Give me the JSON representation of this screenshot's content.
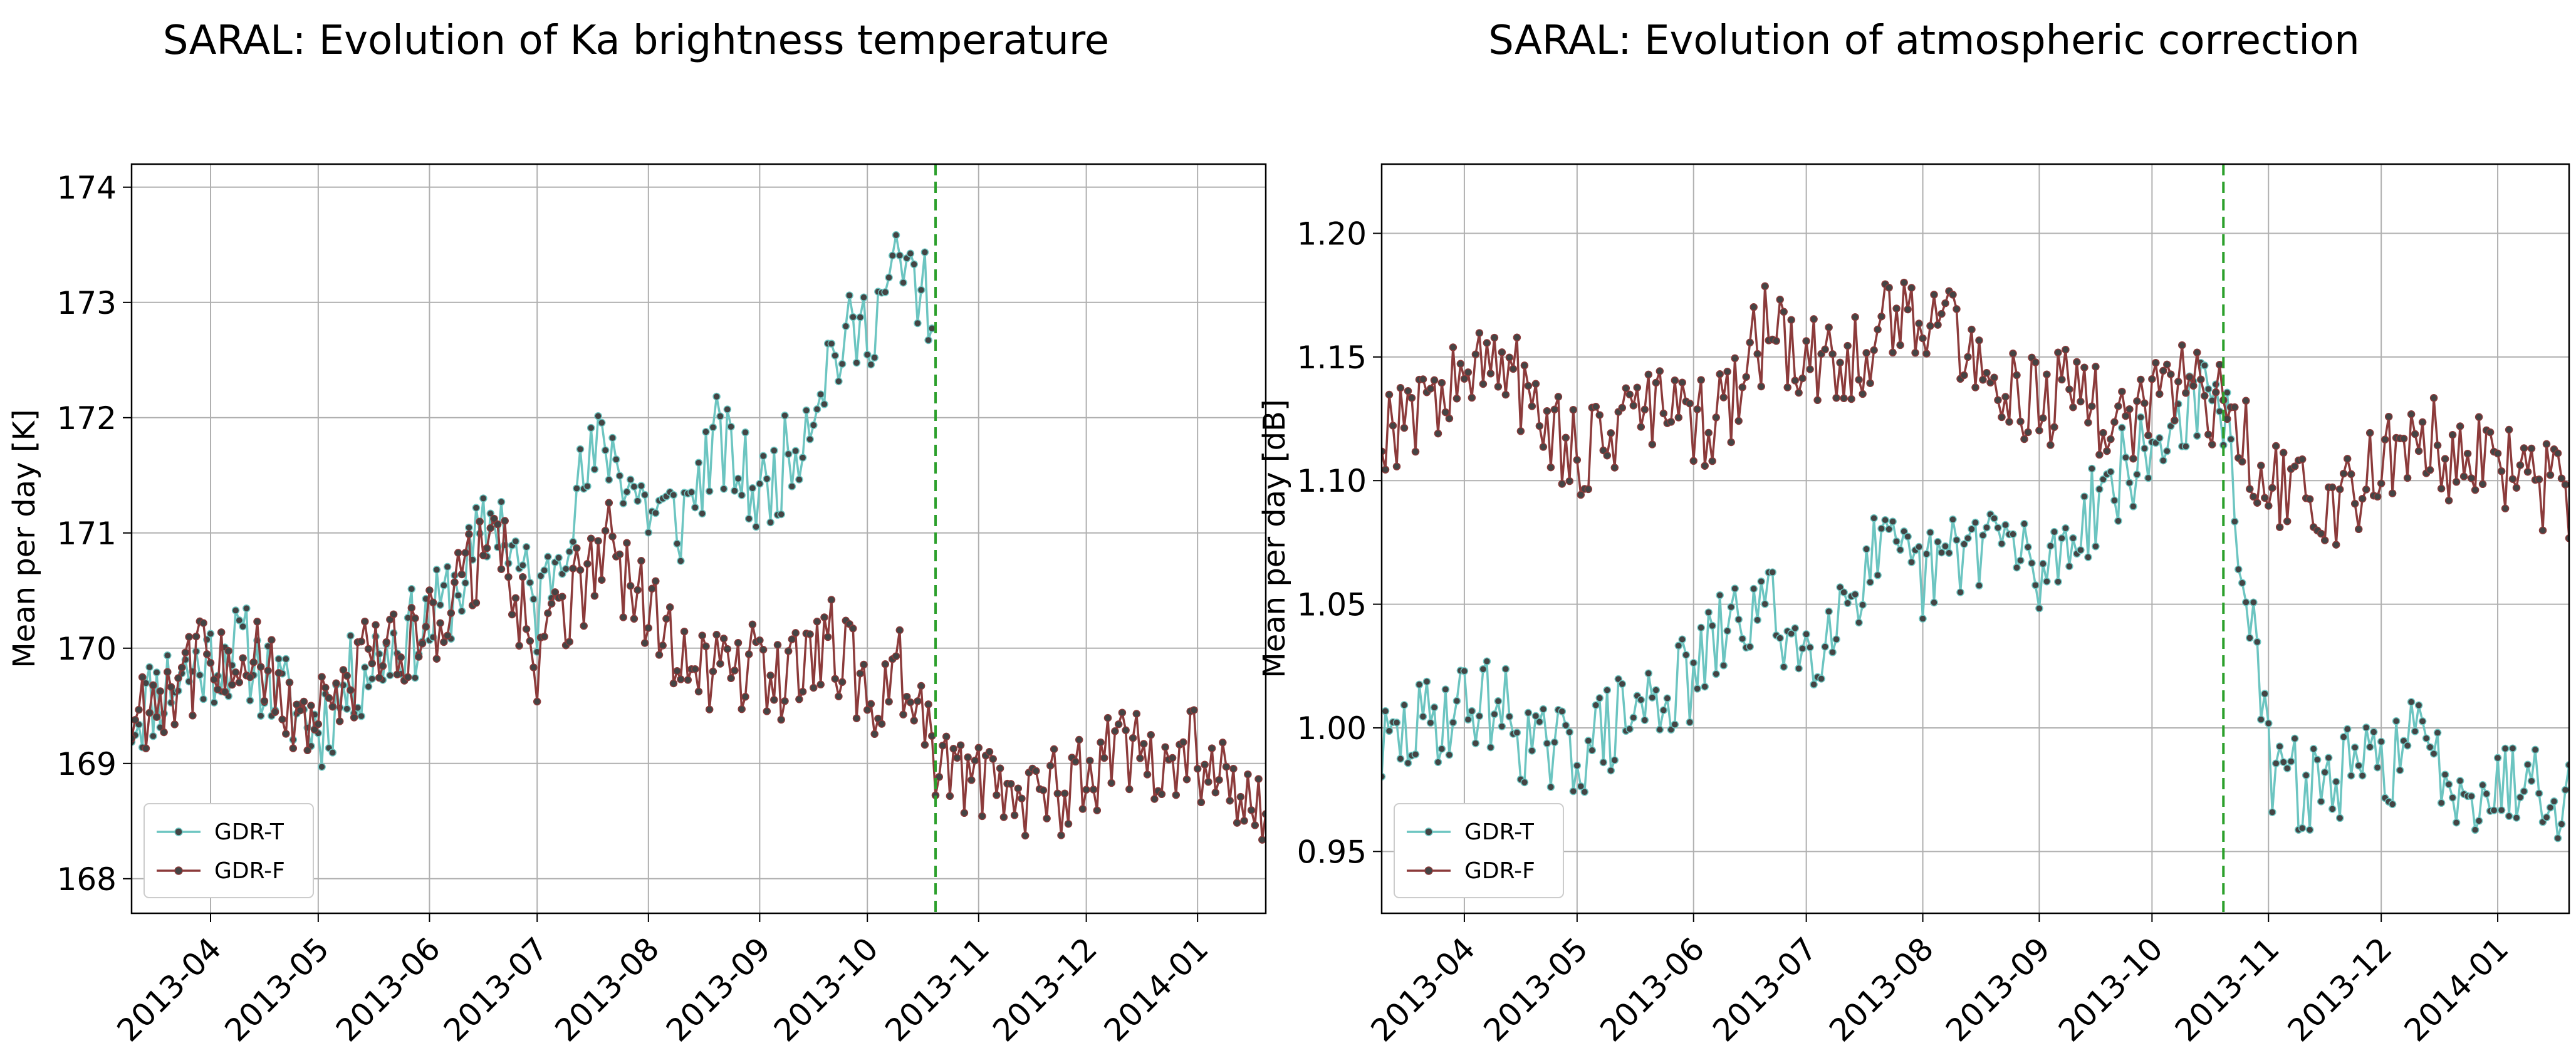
{
  "chart_data": [
    {
      "type": "line",
      "title": "SARAL: Evolution of Ka brightness temperature",
      "xlabel": "",
      "ylabel": "Mean per day [K]",
      "xlim": [
        "2013-03-10",
        "2014-01-20"
      ],
      "ylim": [
        167.7,
        174.2
      ],
      "yticks": [
        168,
        169,
        170,
        171,
        172,
        173,
        174
      ],
      "xticks": [
        "2013-04",
        "2013-05",
        "2013-06",
        "2013-07",
        "2013-08",
        "2013-09",
        "2013-10",
        "2013-11",
        "2013-12",
        "2014-01"
      ],
      "grid": true,
      "legend_position": "lower-left",
      "vline": {
        "date": "2013-10-20",
        "color": "#2ca02c",
        "style": "dashed"
      },
      "series": [
        {
          "name": "GDR-T",
          "color": "#6cc5c1",
          "x": [
            "2013-03-10",
            "2013-03-20",
            "2013-04-01",
            "2013-04-10",
            "2013-04-20",
            "2013-05-01",
            "2013-05-10",
            "2013-05-20",
            "2013-06-01",
            "2013-06-10",
            "2013-06-20",
            "2013-07-01",
            "2013-07-10",
            "2013-07-20",
            "2013-08-01",
            "2013-08-10",
            "2013-08-20",
            "2013-09-01",
            "2013-09-10",
            "2013-09-20",
            "2013-10-01",
            "2013-10-10",
            "2013-10-19"
          ],
          "values": [
            169.4,
            169.7,
            169.9,
            170.0,
            169.6,
            169.3,
            169.7,
            170.0,
            170.2,
            170.6,
            171.2,
            170.3,
            171.2,
            171.8,
            171.2,
            171.1,
            171.8,
            171.3,
            171.7,
            172.5,
            172.8,
            173.3,
            173.0
          ]
        },
        {
          "name": "GDR-F",
          "color": "#8c3b3b",
          "x": [
            "2013-03-10",
            "2013-03-20",
            "2013-04-01",
            "2013-04-10",
            "2013-04-20",
            "2013-05-01",
            "2013-05-10",
            "2013-05-20",
            "2013-06-01",
            "2013-06-10",
            "2013-06-20",
            "2013-07-01",
            "2013-07-10",
            "2013-07-20",
            "2013-08-01",
            "2013-08-10",
            "2013-08-20",
            "2013-09-01",
            "2013-09-10",
            "2013-09-20",
            "2013-10-01",
            "2013-10-10",
            "2013-10-20",
            "2013-11-01",
            "2013-11-10",
            "2013-11-20",
            "2013-12-01",
            "2013-12-10",
            "2013-12-20",
            "2014-01-01",
            "2014-01-10",
            "2014-01-20"
          ],
          "values": [
            169.4,
            169.7,
            169.9,
            170.0,
            169.6,
            169.3,
            169.7,
            170.0,
            170.2,
            170.6,
            171.0,
            169.9,
            170.4,
            170.9,
            170.3,
            170.0,
            169.8,
            169.9,
            169.7,
            170.1,
            169.6,
            169.8,
            169.0,
            168.9,
            168.8,
            168.7,
            168.9,
            169.2,
            168.9,
            169.1,
            168.8,
            168.6
          ]
        }
      ]
    },
    {
      "type": "line",
      "title": "SARAL: Evolution of atmospheric correction",
      "xlabel": "",
      "ylabel": "Mean per day [dB]",
      "xlim": [
        "2013-03-10",
        "2014-01-20"
      ],
      "ylim": [
        0.925,
        1.228
      ],
      "yticks": [
        0.95,
        1.0,
        1.05,
        1.1,
        1.15,
        1.2
      ],
      "ytick_labels": [
        "0.95",
        "1.00",
        "1.05",
        "1.10",
        "1.15",
        "1.20"
      ],
      "xticks": [
        "2013-04",
        "2013-05",
        "2013-06",
        "2013-07",
        "2013-08",
        "2013-09",
        "2013-10",
        "2013-11",
        "2013-12",
        "2014-01"
      ],
      "grid": true,
      "legend_position": "lower-left",
      "vline": {
        "date": "2013-10-20",
        "color": "#2ca02c",
        "style": "dashed"
      },
      "series": [
        {
          "name": "GDR-T",
          "color": "#6cc5c1",
          "x": [
            "2013-03-10",
            "2013-03-20",
            "2013-04-01",
            "2013-04-10",
            "2013-04-20",
            "2013-05-01",
            "2013-05-10",
            "2013-05-20",
            "2013-06-01",
            "2013-06-10",
            "2013-06-20",
            "2013-07-01",
            "2013-07-10",
            "2013-07-20",
            "2013-08-01",
            "2013-08-10",
            "2013-08-20",
            "2013-09-01",
            "2013-09-10",
            "2013-09-20",
            "2013-10-01",
            "2013-10-10",
            "2013-10-20",
            "2013-11-01",
            "2013-11-10",
            "2013-11-20",
            "2013-12-01",
            "2013-12-10",
            "2013-12-20",
            "2014-01-01",
            "2014-01-10",
            "2014-01-20"
          ],
          "values": [
            0.99,
            1.0,
            1.01,
            1.01,
            0.99,
            0.99,
            1.0,
            1.01,
            1.02,
            1.04,
            1.05,
            1.03,
            1.05,
            1.07,
            1.06,
            1.07,
            1.08,
            1.06,
            1.08,
            1.1,
            1.11,
            1.13,
            1.13,
            0.985,
            0.975,
            0.98,
            0.985,
            0.995,
            0.98,
            0.975,
            0.985,
            0.97
          ]
        },
        {
          "name": "GDR-F",
          "color": "#8c3b3b",
          "x": [
            "2013-03-10",
            "2013-03-20",
            "2013-04-01",
            "2013-04-10",
            "2013-04-20",
            "2013-05-01",
            "2013-05-10",
            "2013-05-20",
            "2013-06-01",
            "2013-06-10",
            "2013-06-20",
            "2013-07-01",
            "2013-07-10",
            "2013-07-20",
            "2013-08-01",
            "2013-08-10",
            "2013-08-20",
            "2013-09-01",
            "2013-09-10",
            "2013-09-20",
            "2013-10-01",
            "2013-10-10",
            "2013-10-20",
            "2013-11-01",
            "2013-11-10",
            "2013-11-20",
            "2013-12-01",
            "2013-12-10",
            "2013-12-20",
            "2014-01-01",
            "2014-01-10",
            "2014-01-20"
          ],
          "values": [
            1.12,
            1.13,
            1.14,
            1.15,
            1.13,
            1.11,
            1.12,
            1.13,
            1.12,
            1.13,
            1.16,
            1.15,
            1.14,
            1.16,
            1.17,
            1.16,
            1.14,
            1.13,
            1.14,
            1.12,
            1.13,
            1.14,
            1.13,
            1.1,
            1.09,
            1.09,
            1.11,
            1.12,
            1.11,
            1.11,
            1.1,
            1.09
          ]
        }
      ]
    }
  ]
}
